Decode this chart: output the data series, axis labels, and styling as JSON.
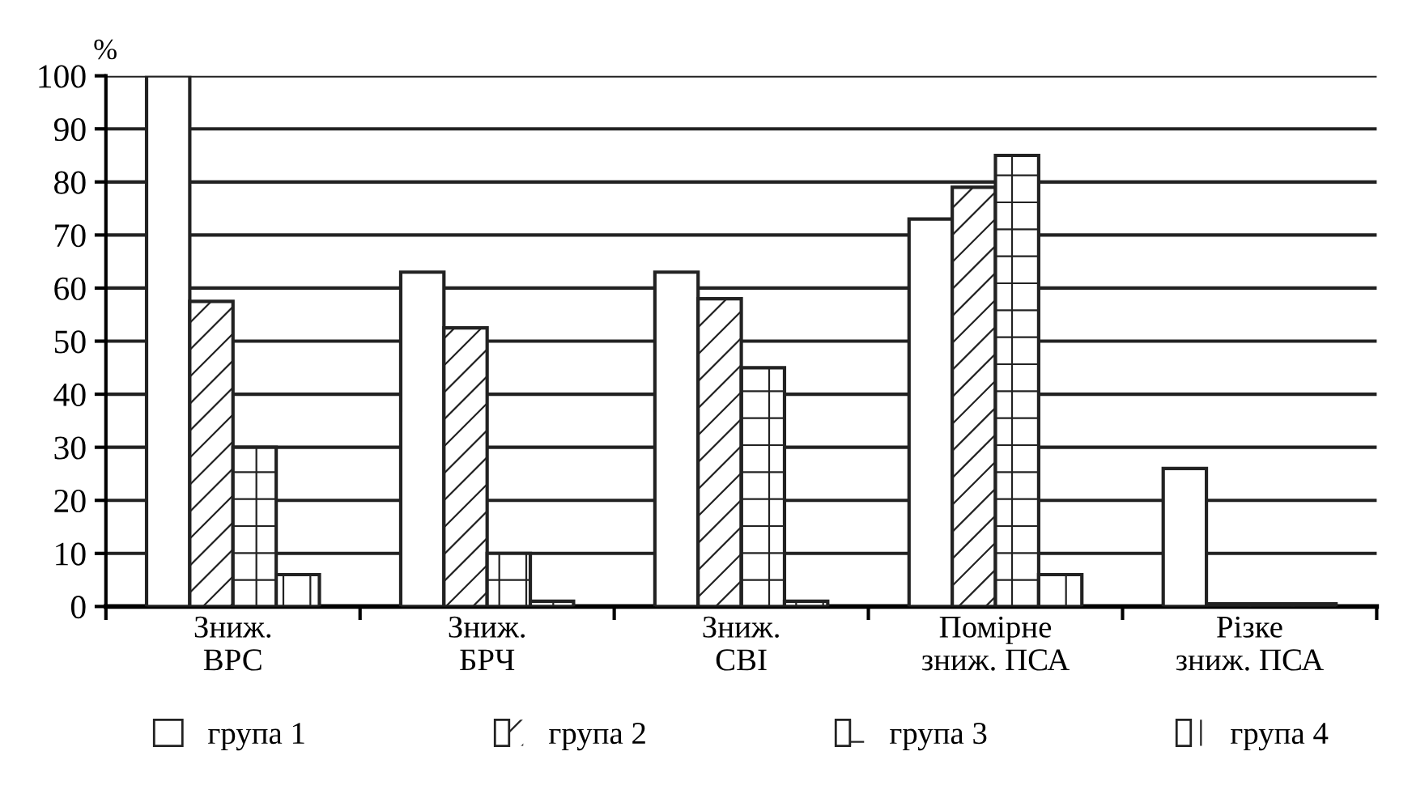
{
  "chart_data": {
    "type": "bar",
    "ylabel": "%",
    "categories": [
      "Зниж.\nВРС",
      "Зниж.\nБРЧ",
      "Зниж.\nСВІ",
      "Помірне\nзниж. ПСА",
      "Різке\nзниж. ПСА"
    ],
    "series": [
      {
        "name": "група 1",
        "color": "#ffffff",
        "values": [
          100,
          63,
          63,
          73,
          26
        ]
      },
      {
        "name": "група 2",
        "color": "#ffffff",
        "values": [
          57.5,
          52.5,
          58,
          79,
          0.5
        ]
      },
      {
        "name": "група 3",
        "color": "#ffffff",
        "values": [
          30,
          10,
          45,
          85,
          0.5
        ]
      },
      {
        "name": "група 4",
        "color": "#ffffff",
        "values": [
          6,
          1,
          1,
          6,
          0.5
        ]
      }
    ],
    "ylim": [
      0,
      100
    ],
    "yticks": [
      0,
      10,
      20,
      30,
      40,
      50,
      60,
      70,
      80,
      90,
      100
    ],
    "grid": "y",
    "legend": "bottom"
  }
}
